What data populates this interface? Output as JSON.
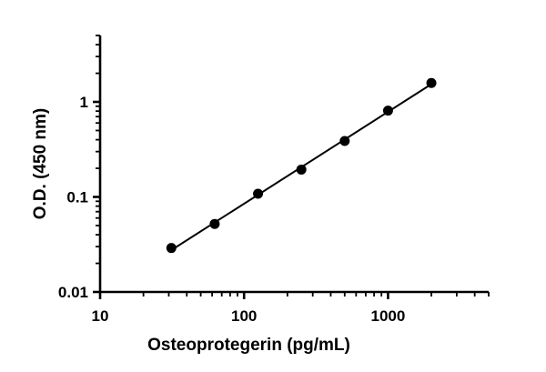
{
  "chart_data": {
    "type": "scatter",
    "title": "",
    "xlabel": "Osteoprotegerin (pg/mL)",
    "ylabel": "O.D. (450 nm)",
    "xscale": "log",
    "yscale": "log",
    "xlim": [
      10,
      5000
    ],
    "ylim": [
      0.01,
      5
    ],
    "x_ticks": [
      "10",
      "100",
      "1000"
    ],
    "y_ticks": [
      "0.01",
      "0.1",
      "1"
    ],
    "grid": false,
    "legend": "none",
    "fit_line": true,
    "series": [
      {
        "x": [
          31.25,
          62.5,
          125,
          250,
          500,
          1000,
          2000
        ],
        "y": [
          0.029,
          0.052,
          0.108,
          0.194,
          0.388,
          0.81,
          1.58
        ]
      }
    ],
    "colors": {
      "points": "#000000",
      "line": "#000000",
      "axes": "#000000"
    }
  }
}
